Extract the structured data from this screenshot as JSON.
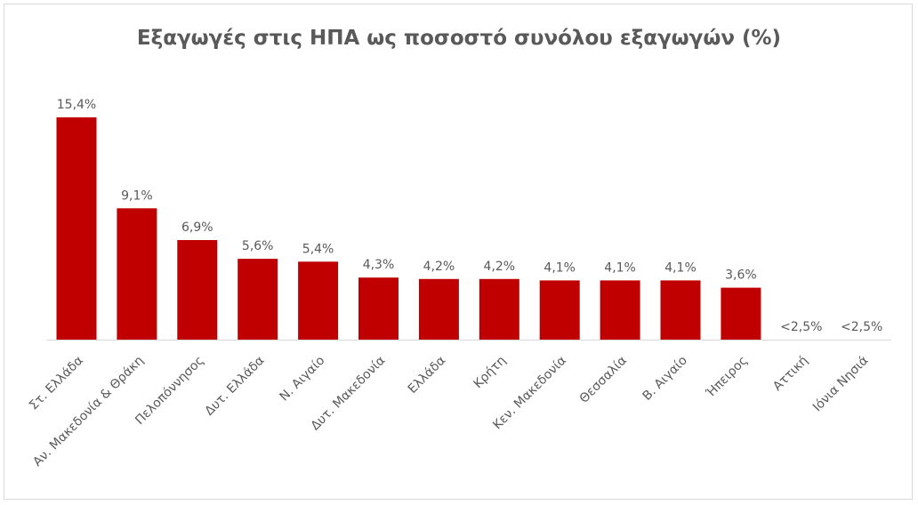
{
  "chart_data": {
    "type": "bar",
    "title": "Εξαγωγές στις ΗΠΑ ως ποσοστό συνόλου εξαγωγών (%)",
    "xlabel": "",
    "ylabel": "",
    "ylim": [
      0,
      16
    ],
    "grid": false,
    "legend": "none",
    "bar_color": "#C00000",
    "text_color": "#595959",
    "categories": [
      "Στ. Ελλάδα",
      "Αν. Μακεδονία & Θράκη",
      "Πελοπόννησος",
      "Δυτ. Ελλάδα",
      "Ν. Αιγαίο",
      "Δυτ. Μακεδονία",
      "Ελλάδα",
      "Κρήτη",
      "Κεν. Μακεδονία",
      "Θεσσαλία",
      "Β. Αιγαίο",
      "Ήπειρος",
      "Αττική",
      "Ιόνια Νησιά"
    ],
    "values": [
      15.4,
      9.1,
      6.9,
      5.6,
      5.4,
      4.3,
      4.2,
      4.2,
      4.1,
      4.1,
      4.1,
      3.6,
      null,
      null
    ],
    "data_labels": [
      "15,4%",
      "9,1%",
      "6,9%",
      "5,6%",
      "5,4%",
      "4,3%",
      "4,2%",
      "4,2%",
      "4,1%",
      "4,1%",
      "4,1%",
      "3,6%",
      "<2,5%",
      "<2,5%"
    ]
  }
}
